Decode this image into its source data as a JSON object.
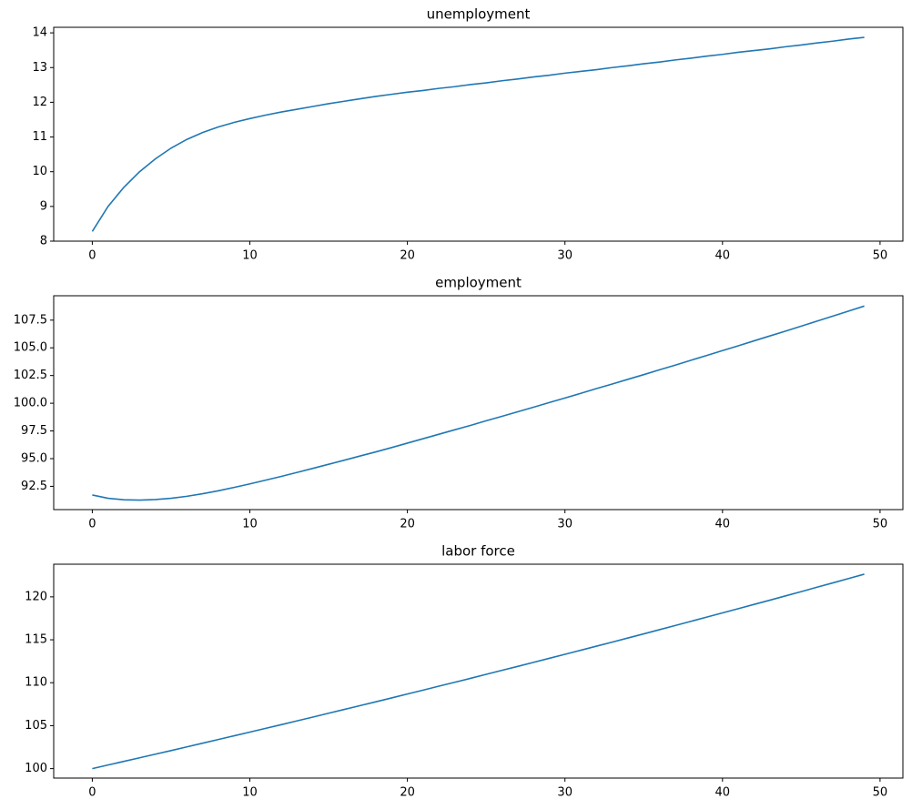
{
  "chart_data": [
    {
      "type": "line",
      "title": "unemployment",
      "color": "#1f77b4",
      "x": [
        0,
        1,
        2,
        3,
        4,
        5,
        6,
        7,
        8,
        9,
        10,
        11,
        12,
        13,
        14,
        15,
        16,
        17,
        18,
        19,
        20,
        21,
        22,
        23,
        24,
        25,
        26,
        27,
        28,
        29,
        30,
        31,
        32,
        33,
        34,
        35,
        36,
        37,
        38,
        39,
        40,
        41,
        42,
        43,
        44,
        45,
        46,
        47,
        48,
        49
      ],
      "values": [
        8.28,
        9.0,
        9.55,
        10.0,
        10.37,
        10.68,
        10.93,
        11.13,
        11.29,
        11.42,
        11.53,
        11.63,
        11.72,
        11.8,
        11.88,
        11.96,
        12.03,
        12.1,
        12.17,
        12.23,
        12.29,
        12.34,
        12.4,
        12.45,
        12.51,
        12.56,
        12.62,
        12.67,
        12.73,
        12.78,
        12.84,
        12.89,
        12.94,
        13.0,
        13.05,
        13.11,
        13.16,
        13.22,
        13.27,
        13.33,
        13.38,
        13.44,
        13.49,
        13.54,
        13.6,
        13.65,
        13.71,
        13.76,
        13.82,
        13.87
      ],
      "xlim": [
        -2.45,
        51.45
      ],
      "ylim": [
        8.0,
        14.16
      ],
      "xticks": [
        0,
        10,
        20,
        30,
        40,
        50
      ],
      "yticks": [
        8,
        9,
        10,
        11,
        12,
        13,
        14
      ]
    },
    {
      "type": "line",
      "title": "employment",
      "color": "#1f77b4",
      "x": [
        0,
        1,
        2,
        3,
        4,
        5,
        6,
        7,
        8,
        9,
        10,
        11,
        12,
        13,
        14,
        15,
        16,
        17,
        18,
        19,
        20,
        21,
        22,
        23,
        24,
        25,
        26,
        27,
        28,
        29,
        30,
        31,
        32,
        33,
        34,
        35,
        36,
        37,
        38,
        39,
        40,
        41,
        42,
        43,
        44,
        45,
        46,
        47,
        48,
        49
      ],
      "values": [
        91.72,
        91.42,
        91.29,
        91.26,
        91.31,
        91.42,
        91.6,
        91.83,
        92.1,
        92.4,
        92.72,
        93.06,
        93.4,
        93.76,
        94.12,
        94.49,
        94.86,
        95.24,
        95.61,
        96.0,
        96.4,
        96.8,
        97.2,
        97.6,
        98.0,
        98.42,
        98.82,
        99.23,
        99.64,
        100.06,
        100.47,
        100.89,
        101.32,
        101.73,
        102.16,
        102.58,
        103.02,
        103.44,
        103.88,
        104.31,
        104.75,
        105.18,
        105.63,
        106.07,
        106.51,
        106.96,
        107.41,
        107.86,
        108.31,
        108.77
      ],
      "xlim": [
        -2.45,
        51.45
      ],
      "ylim": [
        90.4,
        109.7
      ],
      "xticks": [
        0,
        10,
        20,
        30,
        40,
        50
      ],
      "yticks": [
        92.5,
        {
          "value": 95,
          "label": "95.0"
        },
        97.5,
        {
          "value": 100,
          "label": "100.0"
        },
        102.5,
        {
          "value": 105,
          "label": "105.0"
        },
        107.5
      ]
    },
    {
      "type": "line",
      "title": "labor force",
      "color": "#1f77b4",
      "x": [
        0,
        1,
        2,
        3,
        4,
        5,
        6,
        7,
        8,
        9,
        10,
        11,
        12,
        13,
        14,
        15,
        16,
        17,
        18,
        19,
        20,
        21,
        22,
        23,
        24,
        25,
        26,
        27,
        28,
        29,
        30,
        31,
        32,
        33,
        34,
        35,
        36,
        37,
        38,
        39,
        40,
        41,
        42,
        43,
        44,
        45,
        46,
        47,
        48,
        49
      ],
      "values": [
        100.0,
        100.42,
        100.84,
        101.26,
        101.68,
        102.1,
        102.53,
        102.96,
        103.39,
        103.82,
        104.25,
        104.69,
        105.12,
        105.56,
        106.0,
        106.45,
        106.89,
        107.34,
        107.78,
        108.23,
        108.69,
        109.14,
        109.6,
        110.05,
        110.51,
        110.98,
        111.44,
        111.9,
        112.37,
        112.84,
        113.31,
        113.78,
        114.26,
        114.73,
        115.21,
        115.69,
        116.18,
        116.66,
        117.15,
        117.64,
        118.13,
        118.62,
        119.12,
        119.61,
        120.11,
        120.61,
        121.12,
        121.62,
        122.13,
        122.64
      ],
      "xlim": [
        -2.45,
        51.45
      ],
      "ylim": [
        98.9,
        123.8
      ],
      "xticks": [
        0,
        10,
        20,
        30,
        40,
        50
      ],
      "yticks": [
        100,
        105,
        110,
        115,
        120
      ]
    }
  ]
}
